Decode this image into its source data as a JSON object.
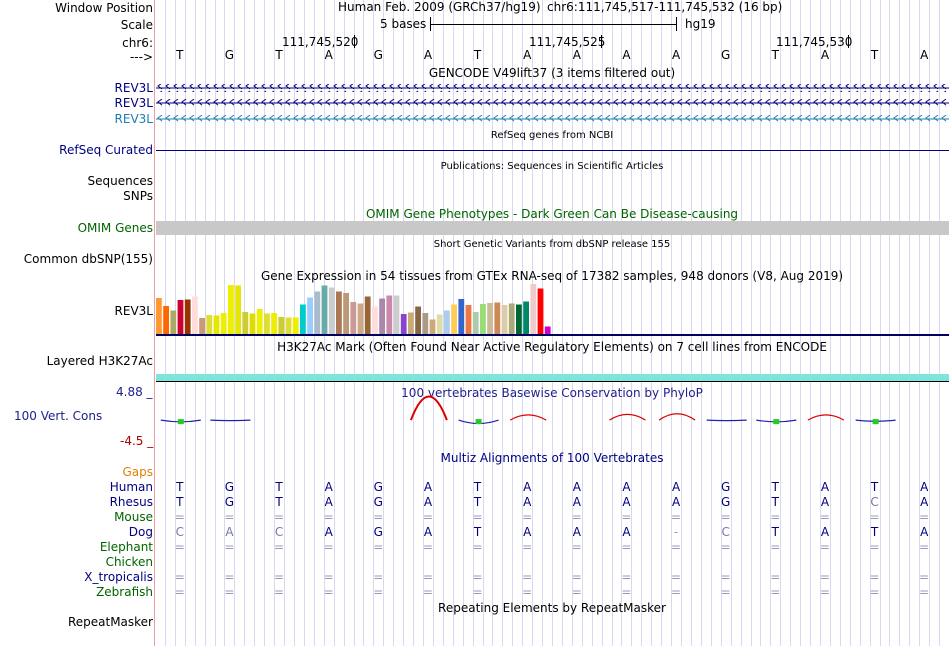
{
  "colors": {
    "label_navy": "#000080",
    "rev3l_light": "#1b7fb4",
    "omim_green": "#006400",
    "gaps_orange": "#e08000",
    "phylop_label": "#1e1e8c",
    "h3k27ac_teal": "#7fe5da",
    "grid": "#d8d8f0"
  },
  "header": {
    "window_position_label": "Window Position",
    "scale_label": "Scale",
    "chr_label": "chr6:",
    "strand_label": "--->",
    "assembly": "Human Feb. 2009 (GRCh37/hg19)",
    "position": "chr6:111,745,517-111,745,532 (16 bp)",
    "scale_text": "5 bases",
    "scale_db": "hg19",
    "coord_ticks": [
      "111,745,520",
      "111,745,525",
      "111,745,530"
    ]
  },
  "sequence": [
    "T",
    "G",
    "T",
    "A",
    "G",
    "A",
    "T",
    "A",
    "A",
    "A",
    "A",
    "G",
    "T",
    "A",
    "T",
    "A"
  ],
  "tracks": {
    "gencode_title": "GENCODE V49lift37 (3 items filtered out)",
    "gencode_items": [
      "REV3L",
      "REV3L",
      "REV3L"
    ],
    "refseq_title": "RefSeq genes from NCBI",
    "refseq_label": "RefSeq Curated",
    "publications_title": "Publications: Sequences in Scientific Articles",
    "publications_label_1": "Sequences",
    "publications_label_2": "SNPs",
    "omim_title": "OMIM Gene Phenotypes - Dark Green Can Be Disease-causing",
    "omim_label": "OMIM Genes",
    "dbsnp_title": "Short Genetic Variants from dbSNP release 155",
    "dbsnp_label": "Common dbSNP(155)",
    "gtex_title": "Gene Expression in 54 tissues from GTEx RNA-seq of 17382 samples, 948 donors (V8, Aug 2019)",
    "gtex_label": "REV3L",
    "h3k27ac_title": "H3K27Ac Mark (Often Found Near Active Regulatory Elements) on 7 cell lines from ENCODE",
    "h3k27ac_label": "Layered H3K27Ac",
    "phylop_title": "100 vertebrates Basewise Conservation by PhyloP",
    "phylop_label": "100 Vert. Cons",
    "phylop_max": "4.88 _",
    "phylop_min": "-4.5 _",
    "multiz_title": "Multiz Alignments of 100 Vertebrates",
    "repeat_title": "Repeating Elements by RepeatMasker",
    "repeat_label": "RepeatMasker"
  },
  "gtex_bars": {
    "values": [
      0.72,
      0.56,
      0.47,
      0.68,
      0.69,
      0.75,
      0.32,
      0.38,
      0.37,
      0.42,
      0.98,
      0.97,
      0.44,
      0.41,
      0.5,
      0.41,
      0.42,
      0.34,
      0.33,
      0.33,
      0.59,
      0.73,
      0.85,
      0.97,
      0.93,
      0.85,
      0.82,
      0.64,
      0.61,
      0.75,
      0.55,
      0.71,
      0.77,
      0.77,
      0.4,
      0.43,
      0.55,
      0.42,
      0.29,
      0.39,
      0.47,
      0.59,
      0.7,
      0.58,
      0.44,
      0.6,
      0.62,
      0.63,
      0.58,
      0.61,
      0.59,
      0.65,
      1.0,
      0.91,
      0.15
    ],
    "colors": [
      "#ff9933",
      "#ff6600",
      "#aaaa66",
      "#cc0033",
      "#993300",
      "#ffdddd",
      "#cc9977",
      "#dddd33",
      "#e6e600",
      "#eeee00",
      "#eeee00",
      "#e6e600",
      "#cccc33",
      "#dddd00",
      "#eeee00",
      "#dddd33",
      "#eeee00",
      "#cccc33",
      "#dddd33",
      "#eeee00",
      "#00cccc",
      "#99ccff",
      "#aabbcc",
      "#66aaaa",
      "#cccccc",
      "#aa7755",
      "#bb9977",
      "#cc9999",
      "#ccaa88",
      "#996633",
      "#ffdddd",
      "#aa88aa",
      "#cc88aa",
      "#cccccc",
      "#8844cc",
      "#ccaa77",
      "#886644",
      "#aa9988",
      "#ccaa77",
      "#ddddaa",
      "#aaccee",
      "#ffcc55",
      "#3366cc",
      "#ee7744",
      "#aaccaa",
      "#99dd77",
      "#ccbb99",
      "#cc8855",
      "#ddccaa",
      "#aaaa77",
      "#006633",
      "#008866",
      "#eecccc",
      "#ff0000",
      "#cc00cc"
    ]
  },
  "phylop": {
    "values": [
      -0.3,
      -0.1,
      0,
      0,
      0,
      4.1,
      -0.6,
      0.9,
      0,
      1.0,
      1.1,
      -0.1,
      -0.3,
      0.9,
      -0.2,
      0
    ],
    "ylim": [
      -4.5,
      4.88
    ]
  },
  "multiz": {
    "species": [
      {
        "name": "Gaps",
        "bases": []
      },
      {
        "name": "Human",
        "bases": [
          "T",
          "G",
          "T",
          "A",
          "G",
          "A",
          "T",
          "A",
          "A",
          "A",
          "A",
          "G",
          "T",
          "A",
          "T",
          "A"
        ]
      },
      {
        "name": "Rhesus",
        "bases": [
          "T",
          "G",
          "T",
          "A",
          "G",
          "A",
          "T",
          "A",
          "A",
          "A",
          "A",
          "G",
          "T",
          "A",
          "C",
          "A"
        ]
      },
      {
        "name": "Mouse",
        "bases": [
          "=",
          "=",
          "=",
          "=",
          "=",
          "=",
          "=",
          "=",
          "=",
          "=",
          "=",
          "=",
          "=",
          "=",
          "=",
          "="
        ]
      },
      {
        "name": "Dog",
        "bases": [
          "C",
          "A",
          "C",
          "A",
          "G",
          "A",
          "T",
          "A",
          "A",
          "A",
          "-",
          "C",
          "T",
          "A",
          "T",
          "A"
        ]
      },
      {
        "name": "Elephant",
        "bases": [
          "=",
          "=",
          "=",
          "=",
          "=",
          "=",
          "=",
          "=",
          "=",
          "=",
          "=",
          "=",
          "=",
          "=",
          "=",
          "="
        ]
      },
      {
        "name": "Chicken",
        "bases": []
      },
      {
        "name": "X_tropicalis",
        "bases": [
          "=",
          "=",
          "=",
          "=",
          "=",
          "=",
          "=",
          "=",
          "=",
          "=",
          "=",
          "=",
          "=",
          "=",
          "=",
          "="
        ]
      },
      {
        "name": "Zebrafish",
        "bases": [
          "=",
          "=",
          "=",
          "=",
          "=",
          "=",
          "=",
          "=",
          "=",
          "=",
          "=",
          "=",
          "=",
          "=",
          "=",
          "="
        ]
      }
    ],
    "mismatch_color": "#7777aa"
  }
}
